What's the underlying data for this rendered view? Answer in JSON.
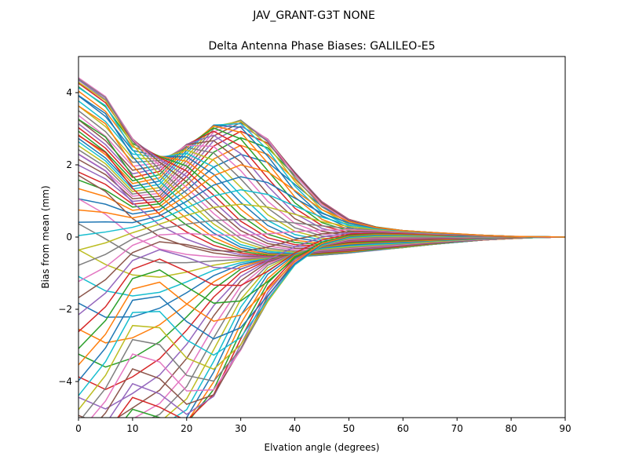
{
  "chart_data": {
    "type": "line",
    "suptitle": "JAV_GRANT-G3T   NONE",
    "title": "Delta Antenna Phase Biases: GALILEO-E5",
    "xlabel": "Elvation angle (degrees)",
    "ylabel": "Bias from mean (mm)",
    "xlim": [
      0,
      90
    ],
    "ylim": [
      -5,
      5
    ],
    "x_ticks": [
      0,
      10,
      20,
      30,
      40,
      50,
      60,
      70,
      80,
      90
    ],
    "y_ticks": [
      -4,
      -2,
      0,
      2,
      4
    ],
    "y_tick_labels": [
      "−4",
      "−2",
      "0",
      "2",
      "4"
    ],
    "grid": false,
    "x": [
      0,
      5,
      10,
      15,
      20,
      25,
      30,
      35,
      40,
      45,
      50,
      55,
      60,
      65,
      70,
      75,
      80,
      85,
      90
    ],
    "n_series": 72,
    "series_note": "72 azimuth curves; values generated from a smooth model fitted to the plotted curves (start value at 0 deg, peak excursion near 10-40 deg, convergence to 0 at 90 deg)",
    "palette": [
      "#1f77b4",
      "#ff7f0e",
      "#2ca02c",
      "#d62728",
      "#9467bd",
      "#8c564b",
      "#e377c2",
      "#7f7f7f",
      "#bcbd22",
      "#17becf"
    ]
  }
}
